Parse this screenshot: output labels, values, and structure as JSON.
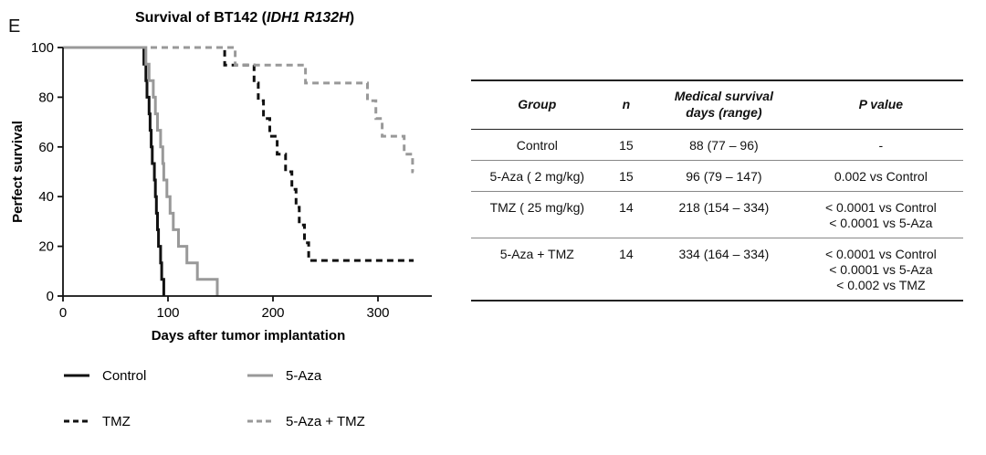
{
  "panel_letter": "E",
  "chart_data": {
    "type": "line",
    "subtype": "kaplan-meier step",
    "title_prefix": "Survival of BT142 (",
    "title_italic": "IDH1 R132H",
    "title_suffix": ")",
    "xlabel": "Days after tumor implantation",
    "ylabel": "Perfect survival",
    "xlim": [
      0,
      340
    ],
    "ylim": [
      0,
      100
    ],
    "xticks": [
      0,
      100,
      200,
      300
    ],
    "yticks": [
      0,
      20,
      40,
      60,
      80,
      100
    ],
    "grid": false,
    "legend_position": "bottom",
    "series": [
      {
        "name": "Control",
        "color": "#111111",
        "style": "solid",
        "points": [
          [
            0,
            100
          ],
          [
            77,
            100
          ],
          [
            77,
            93.3
          ],
          [
            79,
            93.3
          ],
          [
            79,
            86.7
          ],
          [
            80,
            86.7
          ],
          [
            80,
            80
          ],
          [
            82,
            80
          ],
          [
            82,
            73.3
          ],
          [
            83,
            73.3
          ],
          [
            83,
            66.7
          ],
          [
            84,
            66.7
          ],
          [
            84,
            60
          ],
          [
            85,
            60
          ],
          [
            85,
            53.3
          ],
          [
            87,
            53.3
          ],
          [
            87,
            46.7
          ],
          [
            88,
            46.7
          ],
          [
            88,
            40
          ],
          [
            89,
            40
          ],
          [
            89,
            33.3
          ],
          [
            90,
            33.3
          ],
          [
            90,
            26.7
          ],
          [
            91,
            26.7
          ],
          [
            91,
            20
          ],
          [
            93,
            20
          ],
          [
            93,
            13.3
          ],
          [
            94,
            13.3
          ],
          [
            94,
            6.7
          ],
          [
            96,
            6.7
          ],
          [
            96,
            0
          ]
        ]
      },
      {
        "name": "5-Aza",
        "color": "#999999",
        "style": "solid",
        "points": [
          [
            0,
            100
          ],
          [
            79,
            100
          ],
          [
            79,
            93.3
          ],
          [
            82,
            93.3
          ],
          [
            82,
            86.7
          ],
          [
            86,
            86.7
          ],
          [
            86,
            80
          ],
          [
            88,
            80
          ],
          [
            88,
            73.3
          ],
          [
            90,
            73.3
          ],
          [
            90,
            66.7
          ],
          [
            93,
            66.7
          ],
          [
            93,
            60
          ],
          [
            95,
            60
          ],
          [
            95,
            53.3
          ],
          [
            96,
            53.3
          ],
          [
            96,
            46.7
          ],
          [
            99,
            46.7
          ],
          [
            99,
            40
          ],
          [
            102,
            40
          ],
          [
            102,
            33.3
          ],
          [
            105,
            33.3
          ],
          [
            105,
            26.7
          ],
          [
            110,
            26.7
          ],
          [
            110,
            20
          ],
          [
            118,
            20
          ],
          [
            118,
            13.3
          ],
          [
            128,
            13.3
          ],
          [
            128,
            6.7
          ],
          [
            147,
            6.7
          ],
          [
            147,
            0
          ]
        ]
      },
      {
        "name": "TMZ",
        "color": "#111111",
        "style": "dashed",
        "points": [
          [
            0,
            100
          ],
          [
            154,
            100
          ],
          [
            154,
            92.9
          ],
          [
            182,
            92.9
          ],
          [
            182,
            85.7
          ],
          [
            186,
            85.7
          ],
          [
            186,
            78.6
          ],
          [
            191,
            78.6
          ],
          [
            191,
            71.4
          ],
          [
            197,
            71.4
          ],
          [
            197,
            64.3
          ],
          [
            204,
            64.3
          ],
          [
            204,
            57.1
          ],
          [
            212,
            57.1
          ],
          [
            212,
            50
          ],
          [
            218,
            50
          ],
          [
            218,
            42.9
          ],
          [
            222,
            42.9
          ],
          [
            222,
            35.7
          ],
          [
            225,
            35.7
          ],
          [
            225,
            28.6
          ],
          [
            230,
            28.6
          ],
          [
            230,
            21.4
          ],
          [
            234,
            21.4
          ],
          [
            234,
            14.3
          ],
          [
            334,
            14.3
          ]
        ]
      },
      {
        "name": "5-Aza + TMZ",
        "color": "#999999",
        "style": "dashed",
        "points": [
          [
            0,
            100
          ],
          [
            164,
            100
          ],
          [
            164,
            92.9
          ],
          [
            231,
            92.9
          ],
          [
            231,
            85.7
          ],
          [
            290,
            85.7
          ],
          [
            290,
            78.6
          ],
          [
            298,
            78.6
          ],
          [
            298,
            71.4
          ],
          [
            304,
            71.4
          ],
          [
            304,
            64.3
          ],
          [
            325,
            64.3
          ],
          [
            325,
            57.1
          ],
          [
            333,
            57.1
          ],
          [
            333,
            50
          ],
          [
            334,
            50
          ]
        ]
      }
    ]
  },
  "table": {
    "headers": {
      "group": "Group",
      "n": "n",
      "median_line1": "Medical survival",
      "median_line2": "days (range)",
      "pvalue": "P value"
    },
    "rows": [
      {
        "group": "Control",
        "n": "15",
        "median": "88 (77 – 96)",
        "p": [
          "-"
        ]
      },
      {
        "group": "5-Aza ( 2 mg/kg)",
        "n": "15",
        "median": "96 (79 – 147)",
        "p": [
          "0.002 vs Control"
        ]
      },
      {
        "group": "TMZ ( 25 mg/kg)",
        "n": "14",
        "median": "218 (154 – 334)",
        "p": [
          "< 0.0001 vs Control",
          "< 0.0001 vs 5-Aza"
        ]
      },
      {
        "group": "5-Aza + TMZ",
        "n": "14",
        "median": "334 (164 – 334)",
        "p": [
          "< 0.0001 vs Control",
          "< 0.0001 vs 5-Aza",
          "< 0.002 vs TMZ"
        ]
      }
    ]
  }
}
